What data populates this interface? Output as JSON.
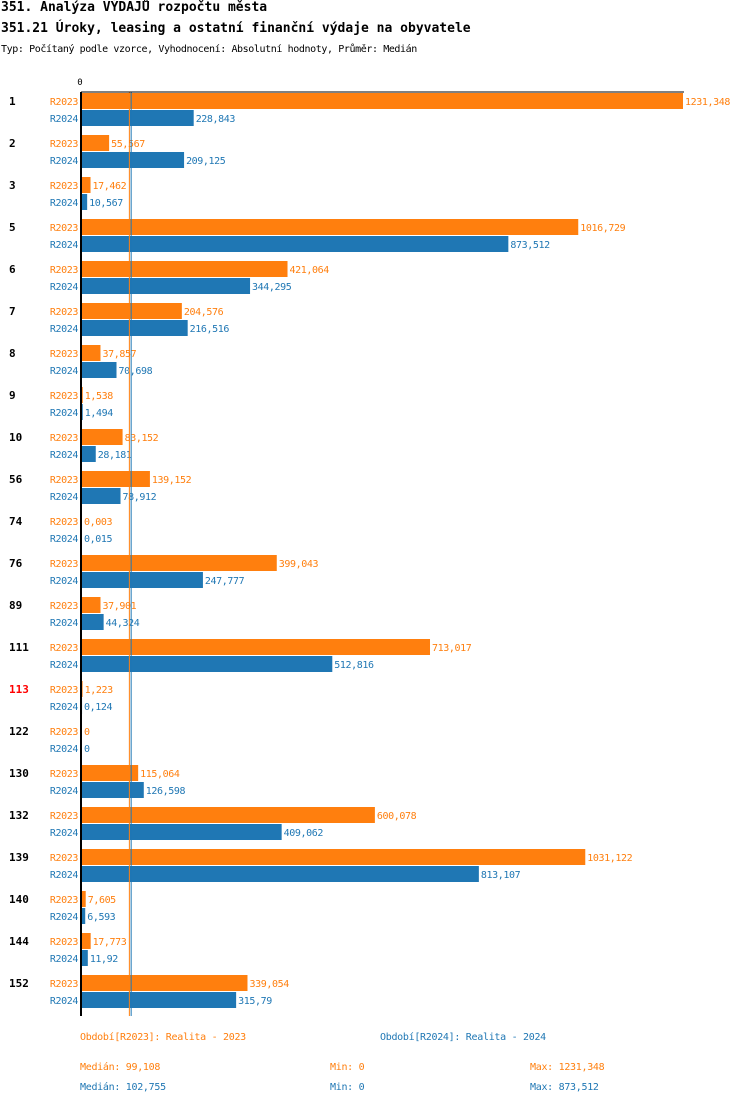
{
  "header": {
    "title": "351. Analýza VÝDAJŮ rozpočtu města",
    "subtitle": "351.21 Úroky, leasing a ostatní finanční výdaje na obyvatele",
    "info": "Typ: Počítaný podle vzorce, Vyhodnocení: Absolutní hodnoty, Průměr: Medián"
  },
  "colors": {
    "R2023": "#ff7f0e",
    "R2024": "#1f77b4",
    "highlight_label": "#ff0000",
    "axis": "#000000"
  },
  "chart_data": {
    "type": "bar",
    "orientation": "horizontal",
    "title": "351.21 Úroky, leasing a ostatní finanční výdaje na obyvatele",
    "xlabel": "",
    "ylabel": "",
    "x_tick_labels": [
      "0"
    ],
    "xlim": [
      0,
      1231.348
    ],
    "grid": false,
    "categories": [
      "1",
      "2",
      "3",
      "5",
      "6",
      "7",
      "8",
      "9",
      "10",
      "56",
      "74",
      "76",
      "89",
      "111",
      "113",
      "122",
      "130",
      "132",
      "139",
      "140",
      "144",
      "152"
    ],
    "highlighted_categories": [
      "113"
    ],
    "series": [
      {
        "name": "R2023",
        "values": [
          1231.348,
          55.567,
          17.462,
          1016.729,
          421.064,
          204.576,
          37.857,
          1.538,
          83.152,
          139.152,
          0.003,
          399.043,
          37.901,
          713.017,
          1.223,
          0,
          115.064,
          600.078,
          1031.122,
          7.605,
          17.773,
          339.054
        ],
        "value_labels": [
          "1231,348",
          "55,567",
          "17,462",
          "1016,729",
          "421,064",
          "204,576",
          "37,857",
          "1,538",
          "83,152",
          "139,152",
          "0,003",
          "399,043",
          "37,901",
          "713,017",
          "1,223",
          "0",
          "115,064",
          "600,078",
          "1031,122",
          "7,605",
          "17,773",
          "339,054"
        ],
        "median": 99.108
      },
      {
        "name": "R2024",
        "values": [
          228.843,
          209.125,
          10.567,
          873.512,
          344.295,
          216.516,
          70.698,
          1.494,
          28.181,
          78.912,
          0.015,
          247.777,
          44.324,
          512.816,
          0.124,
          0,
          126.598,
          409.062,
          813.107,
          6.593,
          11.92,
          315.79
        ],
        "value_labels": [
          "228,843",
          "209,125",
          "10,567",
          "873,512",
          "344,295",
          "216,516",
          "70,698",
          "1,494",
          "28,181",
          "78,912",
          "0,015",
          "247,777",
          "44,324",
          "512,816",
          "0,124",
          "0",
          "126,598",
          "409,062",
          "813,107",
          "6,593",
          "11,92",
          "315,79"
        ],
        "median": 102.755
      }
    ],
    "legend": {
      "placement": "bottom",
      "periods": [
        "Období[R2023]: Realita - 2023",
        "Období[R2024]: Realita - 2024"
      ],
      "stats": [
        {
          "median": "Medián: 99,108",
          "min": "Min: 0",
          "max": "Max: 1231,348"
        },
        {
          "median": "Medián: 102,755",
          "min": "Min: 0",
          "max": "Max: 873,512"
        }
      ]
    }
  }
}
